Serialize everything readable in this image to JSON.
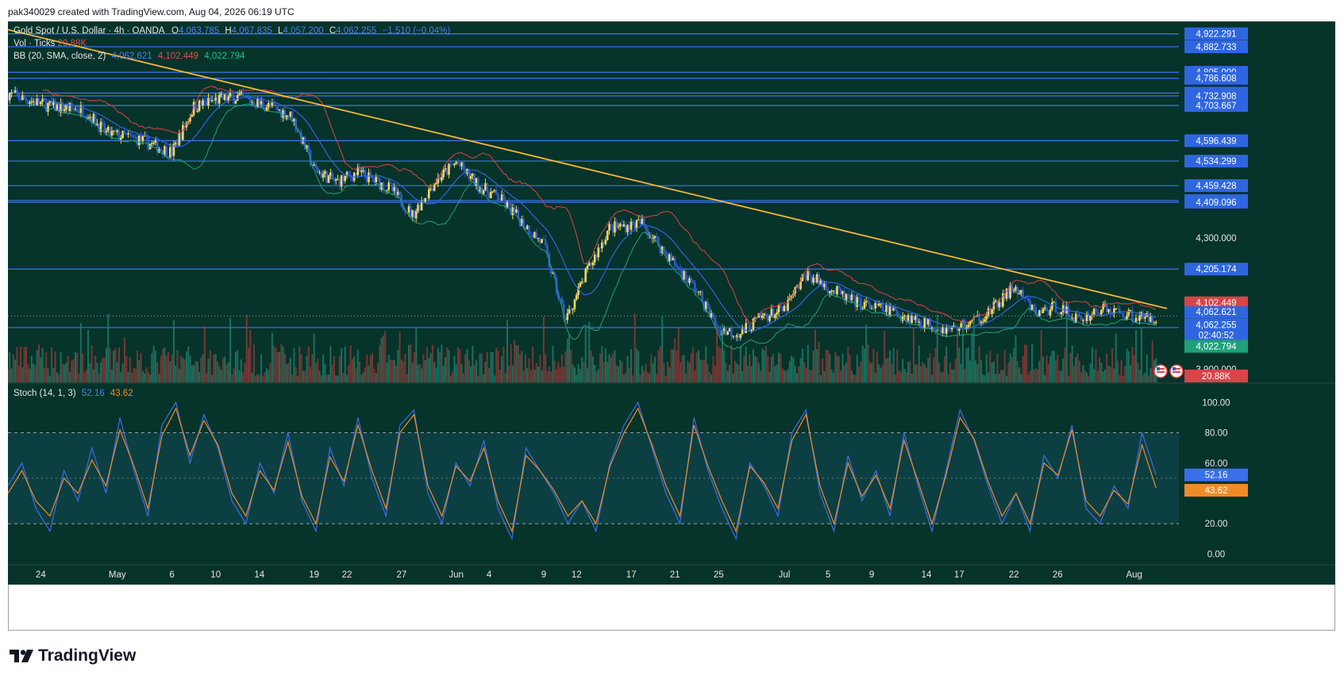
{
  "header": {
    "created_line": "pak340029 created with TradingView.com, Aug 04, 2026 06:19 UTC"
  },
  "legend": {
    "symbol": "Gold Spot / U.S. Dollar · 4h · OANDA",
    "o_label": "O",
    "o_value": "4,063.785",
    "h_label": "H",
    "h_value": "4,067.835",
    "l_label": "L",
    "l_value": "4,057.200",
    "c_label": "C",
    "c_value": "4,062.255",
    "change": "−1.510 (−0.04%)",
    "vol_label": "Vol · Ticks",
    "vol_value": "20.88K",
    "bb_label": "BB (20, SMA, close, 2)",
    "bb_basis": "4,062.621",
    "bb_upper": "4,102.449",
    "bb_lower": "4,022.794",
    "stoch_label": "Stoch (14, 1, 3)",
    "stoch_k": "52.16",
    "stoch_d": "43.62"
  },
  "brand": {
    "name": "TradingView"
  },
  "colors": {
    "background": "#06332a",
    "stoch_bg": "#0c3f41",
    "up_candle": "#f5d75a",
    "down_candle": "#2f5bd6",
    "bb_upper": "#d94447",
    "bb_basis": "#2f66e0",
    "bb_lower": "#1fa07a",
    "level_line": "#3b78f6",
    "trend_line": "#f6b73c",
    "stoch_k": "#3a6fe8",
    "stoch_d": "#f08c28"
  },
  "chart_data": [
    {
      "type": "candlestick",
      "title": "Gold Spot / U.S. Dollar · 4h · OANDA",
      "y_scale": "linear",
      "ylim": [
        3860,
        4960
      ],
      "x_ticks": [
        "24",
        "May",
        "6",
        "10",
        "14",
        "19",
        "22",
        "27",
        "Jun",
        "4",
        "9",
        "12",
        "17",
        "21",
        "25",
        "Jul",
        "5",
        "9",
        "14",
        "17",
        "22",
        "26",
        "Aug"
      ],
      "price_axis_ticks": [
        4300.0,
        3900.0
      ],
      "price_axis_tick_labels": [
        "4,300.000",
        "3,900.000"
      ],
      "horizontal_levels": [
        4922.291,
        4882.733,
        4805.0,
        4786.608,
        4741.507,
        4732.908,
        4703.667,
        4596.439,
        4534.299,
        4459.428,
        4414.039,
        4409.096,
        4205.174,
        4026.912
      ],
      "level_labels": [
        "4,922.291",
        "4,882.733",
        "4,805.000",
        "4,786.608",
        "4,741.507",
        "4,732.908",
        "4,703.667",
        "4,596.439",
        "4,534.299",
        "4,459.428",
        "4,414.039",
        "4,409.096",
        "4,205.174",
        "4,026.912"
      ],
      "trend_line": {
        "from": [
          "Apr 21",
          4935
        ],
        "to": [
          "Aug 5",
          4085
        ]
      },
      "price_path": [
        [
          "Apr 21",
          4740
        ],
        [
          "Apr 25",
          4700
        ],
        [
          "Apr 28",
          4690
        ],
        [
          "Apr 30",
          4620
        ],
        [
          "May 3",
          4600
        ],
        [
          "May 6",
          4560
        ],
        [
          "May 8",
          4700
        ],
        [
          "May 10",
          4720
        ],
        [
          "May 12",
          4730
        ],
        [
          "May 15",
          4700
        ],
        [
          "May 17",
          4670
        ],
        [
          "May 19",
          4510
        ],
        [
          "May 21",
          4470
        ],
        [
          "May 23",
          4500
        ],
        [
          "May 26",
          4450
        ],
        [
          "May 28",
          4370
        ],
        [
          "May 30",
          4470
        ],
        [
          "Jun 1",
          4530
        ],
        [
          "Jun 3",
          4460
        ],
        [
          "Jun 5",
          4420
        ],
        [
          "Jun 7",
          4350
        ],
        [
          "Jun 9",
          4280
        ],
        [
          "Jun 10",
          4160
        ],
        [
          "Jun 11",
          4050
        ],
        [
          "Jun 13",
          4200
        ],
        [
          "Jun 15",
          4330
        ],
        [
          "Jun 18",
          4345
        ],
        [
          "Jun 20",
          4260
        ],
        [
          "Jun 23",
          4140
        ],
        [
          "Jun 25",
          4020
        ],
        [
          "Jun 27",
          4010
        ],
        [
          "Jun 29",
          4060
        ],
        [
          "Jul 1",
          4080
        ],
        [
          "Jul 3",
          4190
        ],
        [
          "Jul 5",
          4150
        ],
        [
          "Jul 7",
          4110
        ],
        [
          "Jul 9",
          4090
        ],
        [
          "Jul 11",
          4075
        ],
        [
          "Jul 14",
          4040
        ],
        [
          "Jul 16",
          4020
        ],
        [
          "Jul 18",
          4040
        ],
        [
          "Jul 20",
          4080
        ],
        [
          "Jul 22",
          4150
        ],
        [
          "Jul 24",
          4070
        ],
        [
          "Jul 26",
          4090
        ],
        [
          "Jul 28",
          4050
        ],
        [
          "Jul 30",
          4085
        ],
        [
          "Aug 1",
          4070
        ],
        [
          "Aug 3",
          4055
        ],
        [
          "Aug 4",
          4062.255
        ]
      ],
      "bollinger_bands": {
        "period": 20,
        "type": "SMA",
        "source": "close",
        "stddev": 2,
        "basis": 4062.621,
        "upper": 4102.449,
        "lower": 4022.794
      },
      "last_close": 4062.255,
      "last_close_label": "4,062.255",
      "countdown": "02:40:52",
      "volume_last": "20.88K"
    },
    {
      "type": "line",
      "title": "Stoch (14, 1, 3)",
      "ylim": [
        -5,
        108
      ],
      "y_ticks": [
        100,
        80,
        60,
        40,
        20,
        0
      ],
      "y_tick_labels": [
        "100.00",
        "80.00",
        "60.00",
        "40.00",
        "20.00",
        "0.00"
      ],
      "series": [
        {
          "name": "%K",
          "last": 52.16,
          "values": [
            45,
            60,
            30,
            15,
            55,
            35,
            70,
            40,
            90,
            55,
            25,
            85,
            100,
            60,
            92,
            70,
            35,
            20,
            60,
            40,
            80,
            35,
            15,
            70,
            45,
            90,
            50,
            25,
            85,
            95,
            40,
            20,
            60,
            45,
            75,
            30,
            10,
            70,
            55,
            40,
            20,
            35,
            15,
            60,
            85,
            100,
            70,
            40,
            20,
            90,
            55,
            30,
            10,
            60,
            45,
            25,
            80,
            95,
            40,
            15,
            65,
            35,
            55,
            25,
            80,
            45,
            15,
            55,
            95,
            75,
            45,
            20,
            40,
            15,
            65,
            50,
            85,
            30,
            20,
            45,
            30,
            80,
            52.16
          ]
        },
        {
          "name": "%D",
          "last": 43.62,
          "values": [
            40,
            55,
            35,
            25,
            50,
            40,
            62,
            45,
            82,
            58,
            30,
            78,
            96,
            65,
            88,
            72,
            40,
            25,
            55,
            42,
            74,
            38,
            20,
            64,
            48,
            85,
            55,
            30,
            80,
            92,
            45,
            25,
            58,
            48,
            70,
            35,
            15,
            65,
            55,
            42,
            25,
            35,
            20,
            58,
            80,
            96,
            72,
            45,
            25,
            85,
            58,
            35,
            15,
            58,
            47,
            30,
            75,
            92,
            45,
            20,
            60,
            38,
            52,
            30,
            75,
            48,
            20,
            52,
            90,
            76,
            48,
            25,
            40,
            20,
            60,
            52,
            82,
            35,
            25,
            42,
            33,
            72,
            43.62
          ]
        }
      ],
      "bands": [
        80,
        20
      ]
    }
  ]
}
